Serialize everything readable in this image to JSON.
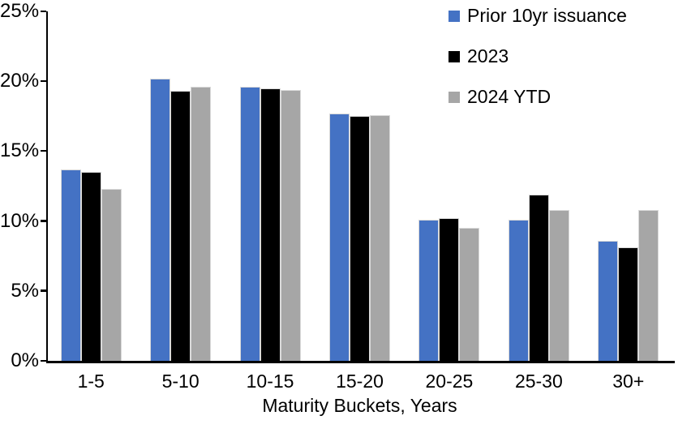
{
  "chart_data": {
    "type": "bar",
    "title": "",
    "categories": [
      "1-5",
      "5-10",
      "10-15",
      "15-20",
      "20-25",
      "25-30",
      "30+"
    ],
    "series": [
      {
        "name": "Prior 10yr issuance",
        "color": "#4472C4",
        "values": [
          13.7,
          20.2,
          19.6,
          17.7,
          10.1,
          10.1,
          8.6
        ]
      },
      {
        "name": "2023",
        "color": "#000000",
        "values": [
          13.5,
          19.3,
          19.5,
          17.5,
          10.2,
          11.9,
          8.1
        ]
      },
      {
        "name": "2024 YTD",
        "color": "#A6A6A6",
        "values": [
          12.3,
          19.6,
          19.4,
          17.6,
          9.5,
          10.8,
          10.8
        ]
      }
    ],
    "xlabel": "Maturity Buckets, Years",
    "ylabel": "",
    "ylim": [
      0,
      25
    ],
    "ytick_step": 5,
    "ytick_labels": [
      "0%",
      "5%",
      "10%",
      "15%",
      "20%",
      "25%"
    ],
    "legend_position": "top-right",
    "grid": false,
    "background": "#FFFFFF",
    "axis_color": "#000000"
  }
}
